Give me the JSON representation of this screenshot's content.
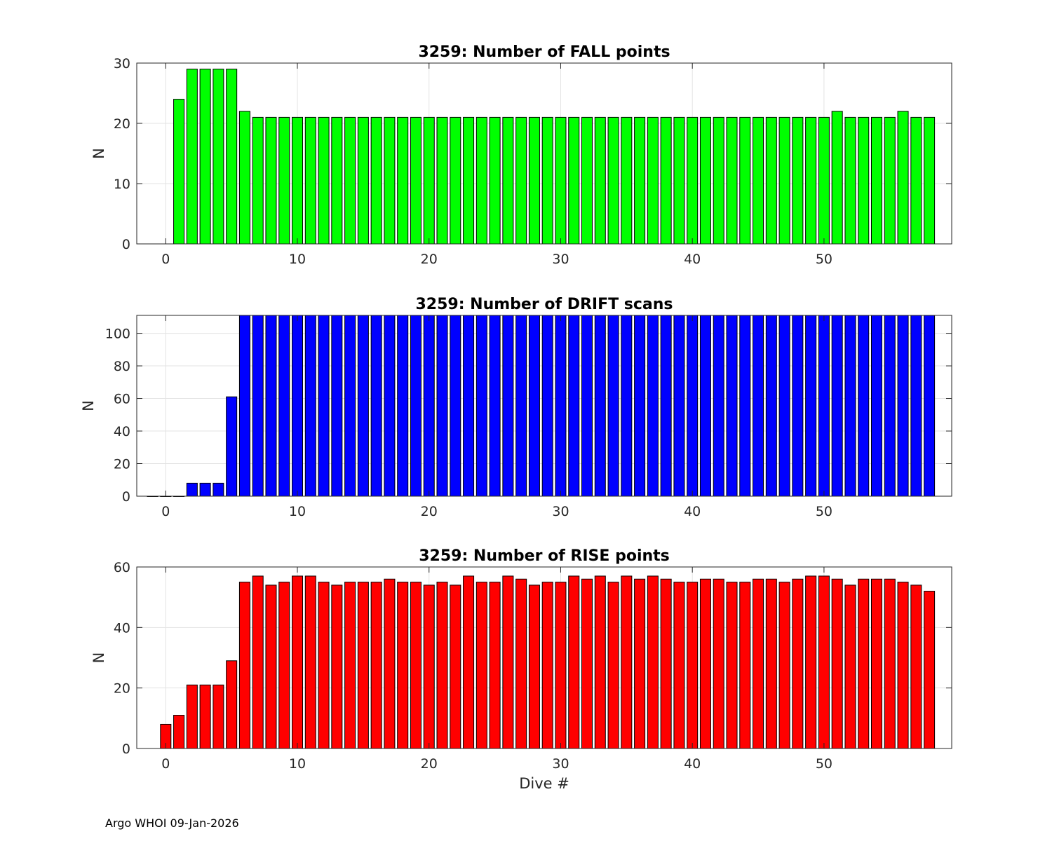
{
  "footer_text": "Argo WHOI 09-Jan-2026",
  "chart_data": [
    {
      "type": "bar",
      "title": "3259: Number of FALL points",
      "xlabel": "",
      "ylabel": "N",
      "color": "#00ff00",
      "xlim": [
        -2.2,
        59.7
      ],
      "ylim": [
        0,
        30
      ],
      "xticks": [
        0,
        10,
        20,
        30,
        40,
        50
      ],
      "yticks": [
        0,
        10,
        20,
        30
      ],
      "grid": true,
      "x": [
        1,
        2,
        3,
        4,
        5,
        6,
        7,
        8,
        9,
        10,
        11,
        12,
        13,
        14,
        15,
        16,
        17,
        18,
        19,
        20,
        21,
        22,
        23,
        24,
        25,
        26,
        27,
        28,
        29,
        30,
        31,
        32,
        33,
        34,
        35,
        36,
        37,
        38,
        39,
        40,
        41,
        42,
        43,
        44,
        45,
        46,
        47,
        48,
        49,
        50,
        51,
        52,
        53,
        54,
        55,
        56,
        57,
        58
      ],
      "values": [
        24,
        29,
        29,
        29,
        29,
        22,
        21,
        21,
        21,
        21,
        21,
        21,
        21,
        21,
        21,
        21,
        21,
        21,
        21,
        21,
        21,
        21,
        21,
        21,
        21,
        21,
        21,
        21,
        21,
        21,
        21,
        21,
        21,
        21,
        21,
        21,
        21,
        21,
        21,
        21,
        21,
        21,
        21,
        21,
        21,
        21,
        21,
        21,
        21,
        21,
        22,
        21,
        21,
        21,
        21,
        22,
        21,
        21
      ]
    },
    {
      "type": "bar",
      "title": "3259: Number of DRIFT scans",
      "xlabel": "",
      "ylabel": "N",
      "color": "#0000ff",
      "xlim": [
        -2.2,
        59.7
      ],
      "ylim": [
        0,
        111
      ],
      "xticks": [
        0,
        10,
        20,
        30,
        40,
        50
      ],
      "yticks": [
        0,
        20,
        40,
        60,
        80,
        100
      ],
      "grid": true,
      "x": [
        -1,
        0,
        1,
        2,
        3,
        4,
        5,
        6,
        7,
        8,
        9,
        10,
        11,
        12,
        13,
        14,
        15,
        16,
        17,
        18,
        19,
        20,
        21,
        22,
        23,
        24,
        25,
        26,
        27,
        28,
        29,
        30,
        31,
        32,
        33,
        34,
        35,
        36,
        37,
        38,
        39,
        40,
        41,
        42,
        43,
        44,
        45,
        46,
        47,
        48,
        49,
        50,
        51,
        52,
        53,
        54,
        55,
        56,
        57,
        58
      ],
      "values": [
        0,
        0,
        0,
        8,
        8,
        8,
        61,
        111,
        111,
        111,
        111,
        111,
        111,
        111,
        111,
        111,
        111,
        111,
        111,
        111,
        111,
        111,
        111,
        111,
        111,
        111,
        111,
        111,
        111,
        111,
        111,
        111,
        111,
        111,
        111,
        111,
        111,
        111,
        111,
        111,
        111,
        111,
        111,
        111,
        111,
        111,
        111,
        111,
        111,
        111,
        111,
        111,
        111,
        111,
        111,
        111,
        111,
        111,
        111,
        111
      ]
    },
    {
      "type": "bar",
      "title": "3259: Number of RISE points",
      "xlabel": "Dive #",
      "ylabel": "N",
      "color": "#ff0000",
      "xlim": [
        -2.2,
        59.7
      ],
      "ylim": [
        0,
        60
      ],
      "xticks": [
        0,
        10,
        20,
        30,
        40,
        50
      ],
      "yticks": [
        0,
        20,
        40,
        60
      ],
      "grid": true,
      "x": [
        0,
        1,
        2,
        3,
        4,
        5,
        6,
        7,
        8,
        9,
        10,
        11,
        12,
        13,
        14,
        15,
        16,
        17,
        18,
        19,
        20,
        21,
        22,
        23,
        24,
        25,
        26,
        27,
        28,
        29,
        30,
        31,
        32,
        33,
        34,
        35,
        36,
        37,
        38,
        39,
        40,
        41,
        42,
        43,
        44,
        45,
        46,
        47,
        48,
        49,
        50,
        51,
        52,
        53,
        54,
        55,
        56,
        57,
        58
      ],
      "values": [
        8,
        11,
        21,
        21,
        21,
        29,
        55,
        57,
        54,
        55,
        57,
        57,
        55,
        54,
        55,
        55,
        55,
        56,
        55,
        55,
        54,
        55,
        54,
        57,
        55,
        55,
        57,
        56,
        54,
        55,
        55,
        57,
        56,
        57,
        55,
        57,
        56,
        57,
        56,
        55,
        55,
        56,
        56,
        55,
        55,
        56,
        56,
        55,
        56,
        57,
        57,
        56,
        54,
        56,
        56,
        56,
        55,
        54,
        52
      ]
    }
  ]
}
